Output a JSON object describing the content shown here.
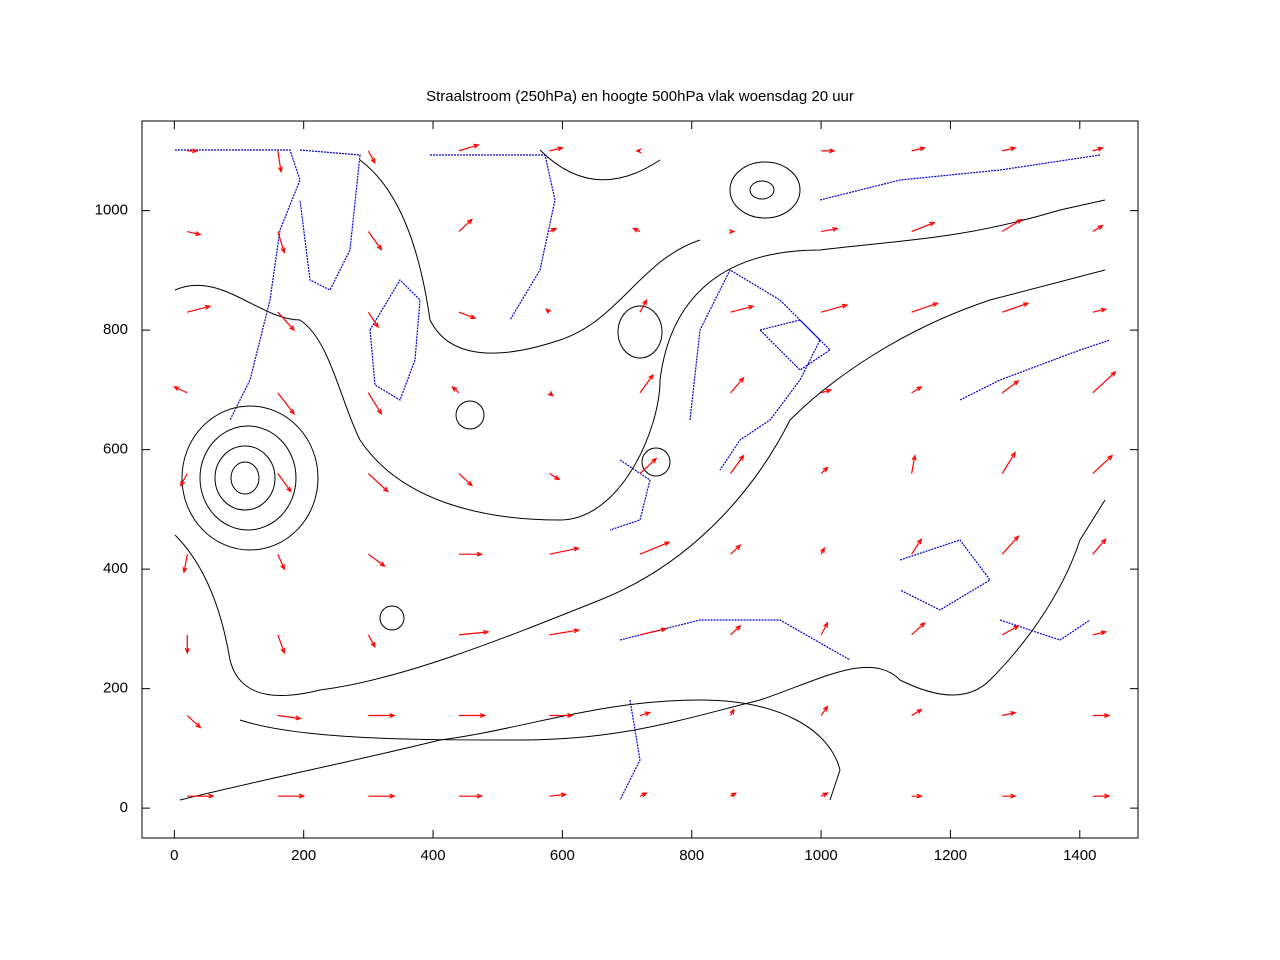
{
  "chart_data": {
    "type": "vector",
    "title": "Straalstroom (250hPa) en hoogte 500hPa vlak woensdag 20 uur",
    "color": "#ff0000",
    "xlim": [
      -50,
      1490
    ],
    "ylim": [
      -50,
      1150
    ],
    "xticks": [
      0,
      200,
      400,
      600,
      800,
      1000,
      1200,
      1400
    ],
    "yticks": [
      0,
      200,
      400,
      600,
      800,
      1000
    ],
    "x": [
      20,
      160,
      300,
      440,
      580,
      720,
      860,
      1000,
      1140,
      1280,
      1420,
      20,
      160,
      300,
      440,
      580,
      720,
      860,
      1000,
      1140,
      1280,
      1420,
      20,
      160,
      300,
      440,
      580,
      720,
      860,
      1000,
      1140,
      1280,
      1420,
      20,
      160,
      300,
      440,
      580,
      720,
      860,
      1000,
      1140,
      1280,
      1420,
      20,
      160,
      300,
      440,
      580,
      720,
      860,
      1000,
      1140,
      1280,
      1420,
      20,
      160,
      300,
      440,
      580,
      720,
      860,
      1000,
      1140,
      1280,
      1420,
      20,
      160,
      300,
      440,
      580,
      720,
      860,
      1000,
      1140,
      1280,
      1420,
      20,
      160,
      300,
      440,
      580,
      720,
      860,
      1000,
      1140,
      1280,
      1420,
      20,
      160,
      300,
      440,
      580,
      720,
      860,
      1000,
      1140,
      1280,
      1420
    ],
    "y": [
      20,
      20,
      20,
      20,
      20,
      20,
      20,
      20,
      20,
      20,
      20,
      155,
      155,
      155,
      155,
      155,
      155,
      155,
      155,
      155,
      155,
      155,
      290,
      290,
      290,
      290,
      290,
      290,
      290,
      290,
      290,
      290,
      290,
      425,
      425,
      425,
      425,
      425,
      425,
      425,
      425,
      425,
      425,
      425,
      560,
      560,
      560,
      560,
      560,
      560,
      560,
      560,
      560,
      560,
      560,
      695,
      695,
      695,
      695,
      695,
      695,
      695,
      695,
      695,
      695,
      695,
      830,
      830,
      830,
      830,
      830,
      830,
      830,
      830,
      830,
      830,
      830,
      965,
      965,
      965,
      965,
      965,
      965,
      965,
      965,
      965,
      965,
      965,
      1100,
      1100,
      1100,
      1100,
      1100,
      1100,
      1100,
      1100,
      1100,
      1100,
      1100
    ],
    "dx": [
      40,
      40,
      40,
      35,
      25,
      10,
      8,
      10,
      15,
      20,
      25,
      20,
      35,
      40,
      40,
      35,
      15,
      5,
      10,
      15,
      20,
      25,
      0,
      10,
      10,
      45,
      45,
      40,
      15,
      10,
      20,
      25,
      20,
      -5,
      10,
      25,
      35,
      45,
      45,
      15,
      5,
      15,
      25,
      20,
      -10,
      20,
      30,
      20,
      15,
      25,
      20,
      10,
      5,
      20,
      30,
      -20,
      25,
      20,
      -10,
      5,
      20,
      20,
      15,
      15,
      25,
      35,
      35,
      25,
      15,
      25,
      -5,
      10,
      35,
      40,
      40,
      40,
      20,
      20,
      10,
      20,
      20,
      10,
      -10,
      5,
      25,
      35,
      30,
      15,
      15,
      5,
      10,
      30,
      20,
      -5,
      0,
      20,
      20,
      20,
      15
    ],
    "dy": [
      0,
      0,
      0,
      0,
      3,
      5,
      5,
      5,
      0,
      0,
      0,
      -20,
      -5,
      0,
      0,
      0,
      5,
      10,
      15,
      10,
      5,
      0,
      -30,
      -30,
      -20,
      5,
      8,
      10,
      15,
      20,
      20,
      15,
      5,
      -30,
      -25,
      -20,
      0,
      10,
      20,
      15,
      10,
      25,
      30,
      25,
      -20,
      -30,
      -30,
      -20,
      -10,
      25,
      30,
      10,
      30,
      35,
      30,
      10,
      -35,
      -35,
      10,
      -5,
      30,
      25,
      5,
      10,
      20,
      35,
      10,
      -30,
      -25,
      -10,
      5,
      20,
      10,
      12,
      15,
      15,
      5,
      -5,
      -35,
      -30,
      20,
      5,
      5,
      0,
      5,
      15,
      20,
      10,
      0,
      -35,
      -20,
      10,
      5,
      0,
      0,
      0,
      5,
      5,
      5
    ]
  }
}
